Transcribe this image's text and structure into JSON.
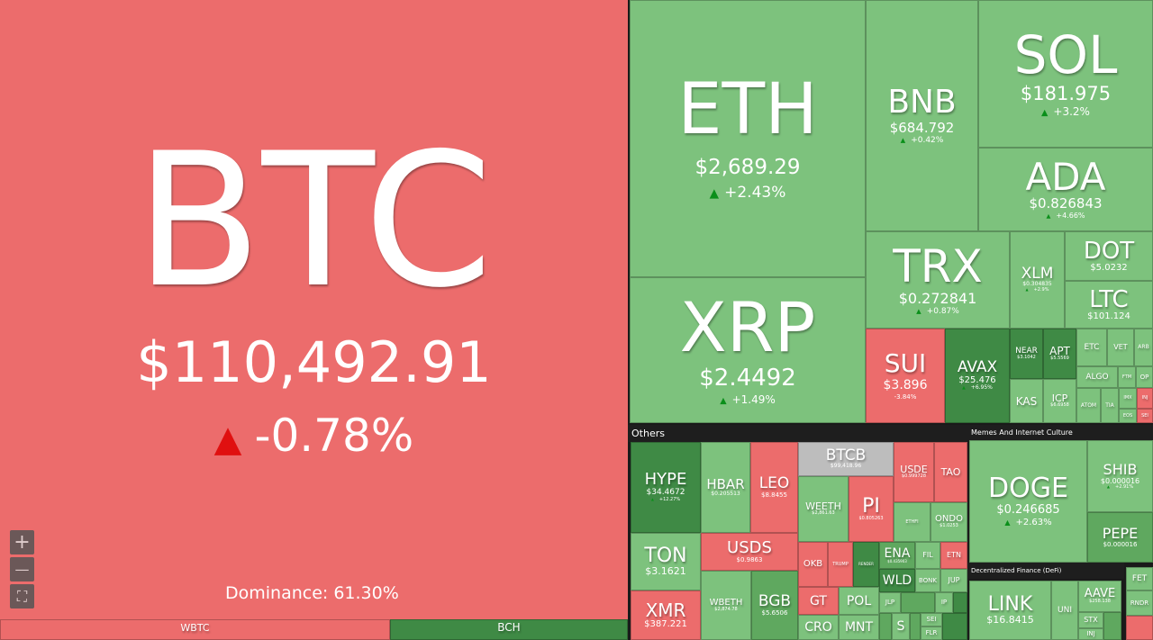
{
  "btc": {
    "symbol": "BTC",
    "price": "$110,492.91",
    "change": "-0.78%",
    "dominance": "Dominance: 61.30%"
  },
  "eth": {
    "symbol": "ETH",
    "price": "$2,689.29",
    "change": "+2.43%"
  },
  "xrp": {
    "symbol": "XRP",
    "price": "$2.4492",
    "change": "+1.49%"
  },
  "bnb": {
    "symbol": "BNB",
    "price": "$684.792",
    "change": "+0.42%"
  },
  "sol": {
    "symbol": "SOL",
    "price": "$181.975",
    "change": "+3.2%"
  },
  "ada": {
    "symbol": "ADA",
    "price": "$0.826843",
    "change": "+4.66%"
  },
  "trx": {
    "symbol": "TRX",
    "price": "$0.272841",
    "change": "+0.87%"
  },
  "xlm": {
    "symbol": "XLM",
    "price": "$0.304835",
    "change": "+2.9%"
  },
  "dot": {
    "symbol": "DOT",
    "price": "$5.0232"
  },
  "ltc": {
    "symbol": "LTC",
    "price": "$101.124"
  },
  "sui": {
    "symbol": "SUI",
    "price": "$3.896",
    "change": "-3.84%"
  },
  "avax": {
    "symbol": "AVAX",
    "price": "$25.476",
    "change": "+6.95%"
  },
  "near": {
    "symbol": "NEAR",
    "price": "$3.1042"
  },
  "apt": {
    "symbol": "APT",
    "price": "$5.5569"
  },
  "kas": {
    "symbol": "KAS"
  },
  "icp": {
    "symbol": "ICP",
    "price": "$6.6958"
  },
  "small_l1": [
    "ETC",
    "VET",
    "ARB",
    "ALGO",
    "FTM",
    "OP",
    "ATOM",
    "TIA",
    "IMX",
    "INJ",
    "EOS",
    "SEI"
  ],
  "sectors": {
    "others": "Others",
    "memes": "Memes And Internet Culture",
    "defi": "Decentralized Finance (DeFi)"
  },
  "others": {
    "hype": {
      "symbol": "HYPE",
      "price": "$34.4672",
      "change": "+12.27%"
    },
    "hbar": {
      "symbol": "HBAR",
      "price": "$0.205513"
    },
    "leo": {
      "symbol": "LEO",
      "price": "$8.8455"
    },
    "btcb": {
      "symbol": "BTCB",
      "price": "$99,418.96"
    },
    "usde": {
      "symbol": "USDE",
      "price": "$0.999728"
    },
    "tao": {
      "symbol": "TAO"
    },
    "weeth": {
      "symbol": "WEETH",
      "price": "$2,861.63"
    },
    "pi": {
      "symbol": "PI",
      "price": "$0.805263"
    },
    "ondo": {
      "symbol": "ONDO",
      "price": "$1.0253"
    },
    "ton": {
      "symbol": "TON",
      "price": "$3.1621"
    },
    "usds": {
      "symbol": "USDS",
      "price": "$0.9863"
    },
    "xmr": {
      "symbol": "XMR",
      "price": "$387.221"
    },
    "wbeth": {
      "symbol": "WBETH",
      "price": "$2,874.78"
    },
    "bgb": {
      "symbol": "BGB",
      "price": "$5.6506"
    },
    "okb": {
      "symbol": "OKB"
    },
    "ena": {
      "symbol": "ENA",
      "price": "$0.435903"
    },
    "fil": {
      "symbol": "FIL"
    },
    "etn": {
      "symbol": "ETN"
    },
    "wld": {
      "symbol": "WLD"
    },
    "bonk": {
      "symbol": "BONK"
    },
    "jup": {
      "symbol": "JUP"
    },
    "gt": {
      "symbol": "GT"
    },
    "pol": {
      "symbol": "POL"
    },
    "jlp": {
      "symbol": "JLP"
    },
    "ip": {
      "symbol": "IP"
    },
    "cro": {
      "symbol": "CRO"
    },
    "mnt": {
      "symbol": "MNT"
    },
    "s": {
      "symbol": "S"
    },
    "sei": {
      "symbol": "SEI"
    },
    "flr": {
      "symbol": "FLR"
    },
    "trump": {
      "symbol": "TRUMP"
    },
    "render": {
      "symbol": "RENDER"
    },
    "ethfi": {
      "symbol": "ETHFI"
    }
  },
  "memes": {
    "doge": {
      "symbol": "DOGE",
      "price": "$0.246685",
      "change": "+2.63%"
    },
    "shib": {
      "symbol": "SHIB",
      "price": "$0.000016",
      "change": "+2.91%"
    },
    "pepe": {
      "symbol": "PEPE",
      "price": "$0.000016"
    }
  },
  "defi": {
    "link": {
      "symbol": "LINK",
      "price": "$16.8415"
    },
    "uni": {
      "symbol": "UNI"
    },
    "aave": {
      "symbol": "AAVE",
      "price": "$258.138"
    },
    "stx": {
      "symbol": "STX"
    },
    "inj": {
      "symbol": "INJ"
    },
    "fet": {
      "symbol": "FET"
    },
    "rndr": {
      "symbol": "RNDR"
    }
  },
  "bottom": {
    "wbtc": "WBTC",
    "bch": "BCH"
  },
  "zoom": {
    "in": "+",
    "out": "—",
    "fit": "⛶"
  }
}
